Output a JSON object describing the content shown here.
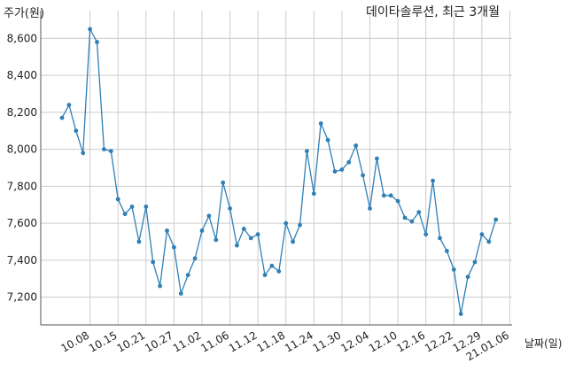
{
  "chart_data": {
    "type": "line",
    "title": "데이타솔루션, 최근 3개월",
    "ylabel": "주가(원)",
    "xlabel": "날짜(일)",
    "ylim": [
      7050,
      8750
    ],
    "yticks": [
      7200,
      7400,
      7600,
      7800,
      8000,
      8200,
      8400,
      8600
    ],
    "ytick_labels": [
      "7,200",
      "7,400",
      "7,600",
      "7,800",
      "8,000",
      "8,200",
      "8,400",
      "8,600"
    ],
    "xtick_labels": [
      "10.08",
      "10.15",
      "10.21",
      "10.27",
      "11.02",
      "11.06",
      "11.12",
      "11.18",
      "11.24",
      "11.30",
      "12.04",
      "12.10",
      "12.16",
      "12.22",
      "12.29",
      "21.01.06"
    ],
    "xtick_positions": [
      4,
      8,
      12,
      16,
      20,
      24,
      28,
      32,
      36,
      40,
      44,
      48,
      52,
      56,
      60,
      64
    ],
    "grid": true,
    "line_color": "#2f7fb6",
    "series": [
      {
        "values": [
          8170,
          8240,
          8100,
          7980,
          8650,
          8580,
          8000,
          7990,
          7730,
          7650,
          7690,
          7500,
          7690,
          7390,
          7260,
          7560,
          7470,
          7220,
          7320,
          7410,
          7560,
          7640,
          7510,
          7820,
          7680,
          7480,
          7570,
          7520,
          7540,
          7320,
          7370,
          7340,
          7600,
          7500,
          7590,
          7990,
          7760,
          8140,
          8050,
          7880,
          7890,
          7930,
          8020,
          7860,
          7680,
          7950,
          7750,
          7750,
          7720,
          7630,
          7610,
          7660,
          7540,
          7830,
          7520,
          7450,
          7350,
          7110,
          7310,
          7390,
          7540,
          7500,
          7620
        ]
      }
    ]
  }
}
